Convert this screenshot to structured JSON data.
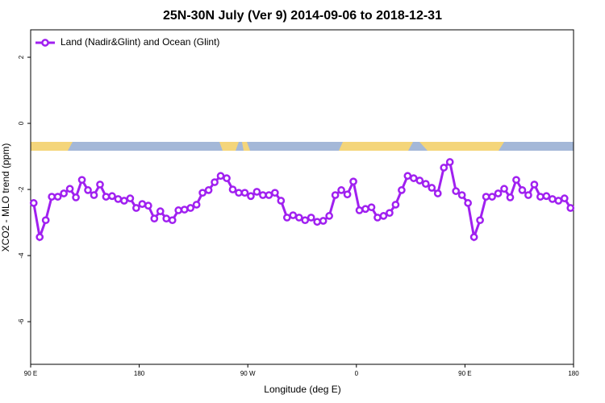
{
  "chart_data": {
    "type": "line",
    "title": "25N-30N July (Ver 9)   2014-09-06 to 2018-12-31",
    "xlabel": "Longitude (deg E)",
    "ylabel": "XCO2 - MLO trend (ppm)",
    "xlim": [
      90,
      540
    ],
    "ylim": [
      -7.29,
      2.83
    ],
    "xticks": [
      {
        "value": 90,
        "label": "90 E"
      },
      180,
      {
        "value": 270,
        "label": "90 W"
      },
      {
        "value": 360,
        "label": "0"
      },
      {
        "value": 450,
        "label": "90 E"
      },
      {
        "value": 540,
        "label": "180"
      }
    ],
    "yticks": [
      2,
      0,
      -2,
      -4,
      -6
    ],
    "legend": "top-left",
    "x": [
      92.5,
      97.5,
      102.5,
      107.5,
      112.5,
      117.5,
      122.5,
      127.5,
      132.5,
      137.5,
      142.5,
      147.5,
      152.5,
      157.5,
      162.5,
      167.5,
      172.5,
      177.5,
      182.5,
      187.5,
      192.5,
      197.5,
      202.5,
      207.5,
      212.5,
      217.5,
      222.5,
      227.5,
      232.5,
      237.5,
      242.5,
      247.5,
      252.5,
      257.5,
      262.5,
      267.5,
      272.5,
      277.5,
      282.5,
      287.5,
      292.5,
      297.5,
      302.5,
      307.5,
      312.5,
      317.5,
      322.5,
      327.5,
      332.5,
      337.5,
      342.5,
      347.5,
      352.5,
      357.5,
      362.5,
      367.5,
      372.5,
      377.5,
      382.5,
      387.5,
      392.5,
      397.5,
      402.5,
      407.5,
      412.5,
      417.5,
      422.5,
      427.5,
      432.5,
      437.5,
      442.5,
      447.5,
      452.5,
      457.5,
      462.5,
      467.5,
      472.5,
      477.5,
      482.5,
      487.5,
      492.5,
      497.5,
      502.5,
      507.5,
      512.5,
      517.5,
      522.5,
      527.5,
      532.5,
      537.5
    ],
    "series": [
      {
        "name": "Land (Nadir&Glint) and Ocean (Glint)",
        "color": "#a020f0",
        "values": [
          -2.41,
          -3.44,
          -2.93,
          -2.22,
          -2.22,
          -2.12,
          -1.98,
          -2.24,
          -1.71,
          -2.02,
          -2.17,
          -1.85,
          -2.22,
          -2.2,
          -2.29,
          -2.34,
          -2.27,
          -2.56,
          -2.44,
          -2.49,
          -2.88,
          -2.66,
          -2.88,
          -2.93,
          -2.63,
          -2.61,
          -2.56,
          -2.46,
          -2.1,
          -2.02,
          -1.78,
          -1.59,
          -1.66,
          -2.0,
          -2.1,
          -2.1,
          -2.2,
          -2.07,
          -2.17,
          -2.17,
          -2.1,
          -2.34,
          -2.85,
          -2.78,
          -2.85,
          -2.93,
          -2.85,
          -2.98,
          -2.95,
          -2.8,
          -2.17,
          -2.02,
          -2.15,
          -1.76,
          -2.63,
          -2.59,
          -2.54,
          -2.85,
          -2.8,
          -2.71,
          -2.46,
          -2.02,
          -1.59,
          -1.66,
          -1.73,
          -1.83,
          -1.95,
          -2.12,
          -1.34,
          -1.17,
          -2.05,
          -2.17,
          -2.41,
          -3.44,
          -2.93,
          -2.22,
          -2.22,
          -2.12,
          -1.98,
          -2.24,
          -1.71,
          -2.02,
          -2.17,
          -1.85,
          -2.22,
          -2.2,
          -2.29,
          -2.34,
          -2.27,
          -2.56
        ]
      }
    ]
  }
}
